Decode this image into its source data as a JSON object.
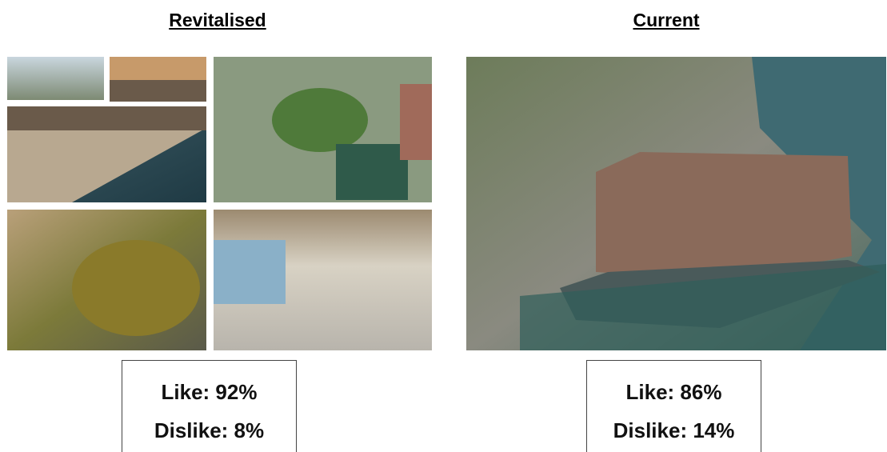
{
  "panels": [
    {
      "heading": "Revitalised",
      "like": "Like: 92%",
      "dislike": "Dislike: 8%"
    },
    {
      "heading": "Current",
      "like": "Like: 86%",
      "dislike": "Dislike: 14%"
    }
  ]
}
